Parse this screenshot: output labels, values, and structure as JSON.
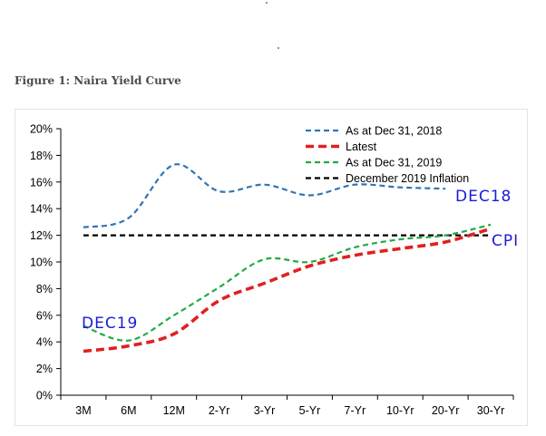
{
  "caption": "Figure 1: Naira Yield Curve",
  "chart_data": {
    "type": "line",
    "title": "",
    "xlabel": "",
    "ylabel": "",
    "categories": [
      "3M",
      "6M",
      "12M",
      "2-Yr",
      "3-Yr",
      "5-Yr",
      "7-Yr",
      "10-Yr",
      "20-Yr",
      "30-Yr"
    ],
    "ylim": [
      0,
      20
    ],
    "yticks": [
      0,
      2,
      4,
      6,
      8,
      10,
      12,
      14,
      16,
      18,
      20
    ],
    "ytick_labels": [
      "0%",
      "2%",
      "4%",
      "6%",
      "8%",
      "10%",
      "12%",
      "14%",
      "16%",
      "18%",
      "20%"
    ],
    "legend_position": "top-right",
    "grid": false,
    "series": [
      {
        "name": "As at Dec 31, 2018",
        "color": "#2e75b6",
        "style": "dashed",
        "values": [
          12.6,
          13.3,
          17.3,
          15.3,
          15.8,
          15.0,
          15.8,
          15.6,
          15.5,
          null
        ]
      },
      {
        "name": "Latest",
        "color": "#e02020",
        "style": "dashed-bold",
        "values": [
          3.3,
          3.7,
          4.6,
          7.1,
          8.4,
          9.7,
          10.5,
          11.0,
          11.5,
          12.5
        ]
      },
      {
        "name": "As at Dec 31, 2019",
        "color": "#22aa44",
        "style": "dashed",
        "values": [
          5.2,
          4.1,
          6.0,
          8.1,
          10.2,
          10.0,
          11.1,
          11.7,
          12.0,
          12.8
        ]
      },
      {
        "name": "December 2019 Inflation",
        "color": "#000000",
        "style": "dashed",
        "values": [
          12.0,
          12.0,
          12.0,
          12.0,
          12.0,
          12.0,
          12.0,
          12.0,
          12.0,
          12.0
        ]
      }
    ],
    "annotations": [
      {
        "text": "DEC18",
        "near": "20-Yr, Dec 2018 line end"
      },
      {
        "text": "CPI",
        "near": "30-Yr, inflation line end"
      },
      {
        "text": "DEC19",
        "near": "3M, Dec 2019 line start"
      }
    ]
  }
}
